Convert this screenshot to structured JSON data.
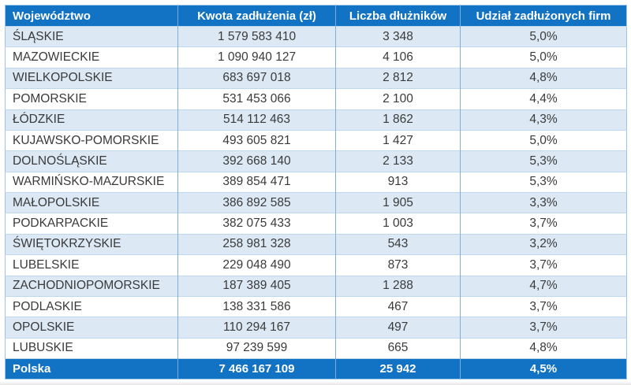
{
  "colors": {
    "header_bg": "#1272C4",
    "total_bg": "#1272C4",
    "alt_row_bg": "#DCE9F5",
    "row_bg": "#FFFFFF",
    "horizontal_border": "#BDD7EE",
    "vertical_border": "#7FAEDC",
    "outer_border": "#9DC3E6",
    "text": "#3A3A3A",
    "header_text": "#FFFFFF"
  },
  "table": {
    "columns": [
      {
        "key": "region",
        "label": "Województwo"
      },
      {
        "key": "amount",
        "label": "Kwota zadłużenia (zł)"
      },
      {
        "key": "debtors",
        "label": "Liczba dłużników"
      },
      {
        "key": "share",
        "label": "Udział zadłużonych firm"
      }
    ],
    "rows": [
      [
        "ŚLĄSKIE",
        "1 579 583 410",
        "3 348",
        "5,0%"
      ],
      [
        "MAZOWIECKIE",
        "1 090 940 127",
        "4 106",
        "5,0%"
      ],
      [
        "WIELKOPOLSKIE",
        "683 697 018",
        "2 812",
        "4,8%"
      ],
      [
        "POMORSKIE",
        "531 453 066",
        "2 100",
        "4,4%"
      ],
      [
        "ŁÓDZKIE",
        "514 112 463",
        "1 862",
        "4,3%"
      ],
      [
        "KUJAWSKO-POMORSKIE",
        "493 605 821",
        "1 427",
        "5,0%"
      ],
      [
        "DOLNOŚLĄSKIE",
        "392 668 140",
        "2 133",
        "5,3%"
      ],
      [
        "WARMIŃSKO-MAZURSKIE",
        "389 854 471",
        "913",
        "5,3%"
      ],
      [
        "MAŁOPOLSKIE",
        "386 892 585",
        "1 905",
        "3,3%"
      ],
      [
        "PODKARPACKIE",
        "382 075 433",
        "1 003",
        "3,7%"
      ],
      [
        "ŚWIĘTOKRZYSKIE",
        "258 981 328",
        "543",
        "3,2%"
      ],
      [
        "LUBELSKIE",
        "229 048 490",
        "873",
        "3,7%"
      ],
      [
        "ZACHODNIOPOMORSKIE",
        "187 389 405",
        "1 288",
        "4,7%"
      ],
      [
        "PODLASKIE",
        "138 331 586",
        "467",
        "3,7%"
      ],
      [
        "OPOLSKIE",
        "110 294 167",
        "497",
        "3,7%"
      ],
      [
        "LUBUSKIE",
        "97 239 599",
        "665",
        "4,8%"
      ]
    ],
    "total": [
      "Polska",
      "7 466 167 109",
      "25 942",
      "4,5%"
    ]
  },
  "chart_data": {
    "type": "table",
    "title": "",
    "columns": [
      "Województwo",
      "Kwota zadłużenia (zł)",
      "Liczba dłużników",
      "Udział zadłużonych firm"
    ],
    "rows": [
      {
        "region": "ŚLĄSKIE",
        "amount_zl": 1579583410,
        "debtors": 3348,
        "share_pct": 5.0
      },
      {
        "region": "MAZOWIECKIE",
        "amount_zl": 1090940127,
        "debtors": 4106,
        "share_pct": 5.0
      },
      {
        "region": "WIELKOPOLSKIE",
        "amount_zl": 683697018,
        "debtors": 2812,
        "share_pct": 4.8
      },
      {
        "region": "POMORSKIE",
        "amount_zl": 531453066,
        "debtors": 2100,
        "share_pct": 4.4
      },
      {
        "region": "ŁÓDZKIE",
        "amount_zl": 514112463,
        "debtors": 1862,
        "share_pct": 4.3
      },
      {
        "region": "KUJAWSKO-POMORSKIE",
        "amount_zl": 493605821,
        "debtors": 1427,
        "share_pct": 5.0
      },
      {
        "region": "DOLNOŚLĄSKIE",
        "amount_zl": 392668140,
        "debtors": 2133,
        "share_pct": 5.3
      },
      {
        "region": "WARMIŃSKO-MAZURSKIE",
        "amount_zl": 389854471,
        "debtors": 913,
        "share_pct": 5.3
      },
      {
        "region": "MAŁOPOLSKIE",
        "amount_zl": 386892585,
        "debtors": 1905,
        "share_pct": 3.3
      },
      {
        "region": "PODKARPACKIE",
        "amount_zl": 382075433,
        "debtors": 1003,
        "share_pct": 3.7
      },
      {
        "region": "ŚWIĘTOKRZYSKIE",
        "amount_zl": 258981328,
        "debtors": 543,
        "share_pct": 3.2
      },
      {
        "region": "LUBELSKIE",
        "amount_zl": 229048490,
        "debtors": 873,
        "share_pct": 3.7
      },
      {
        "region": "ZACHODNIOPOMORSKIE",
        "amount_zl": 187389405,
        "debtors": 1288,
        "share_pct": 4.7
      },
      {
        "region": "PODLASKIE",
        "amount_zl": 138331586,
        "debtors": 467,
        "share_pct": 3.7
      },
      {
        "region": "OPOLSKIE",
        "amount_zl": 110294167,
        "debtors": 497,
        "share_pct": 3.7
      },
      {
        "region": "LUBUSKIE",
        "amount_zl": 97239599,
        "debtors": 665,
        "share_pct": 4.8
      }
    ],
    "total_row": {
      "region": "Polska",
      "amount_zl": 7466167109,
      "debtors": 25942,
      "share_pct": 4.5
    }
  }
}
